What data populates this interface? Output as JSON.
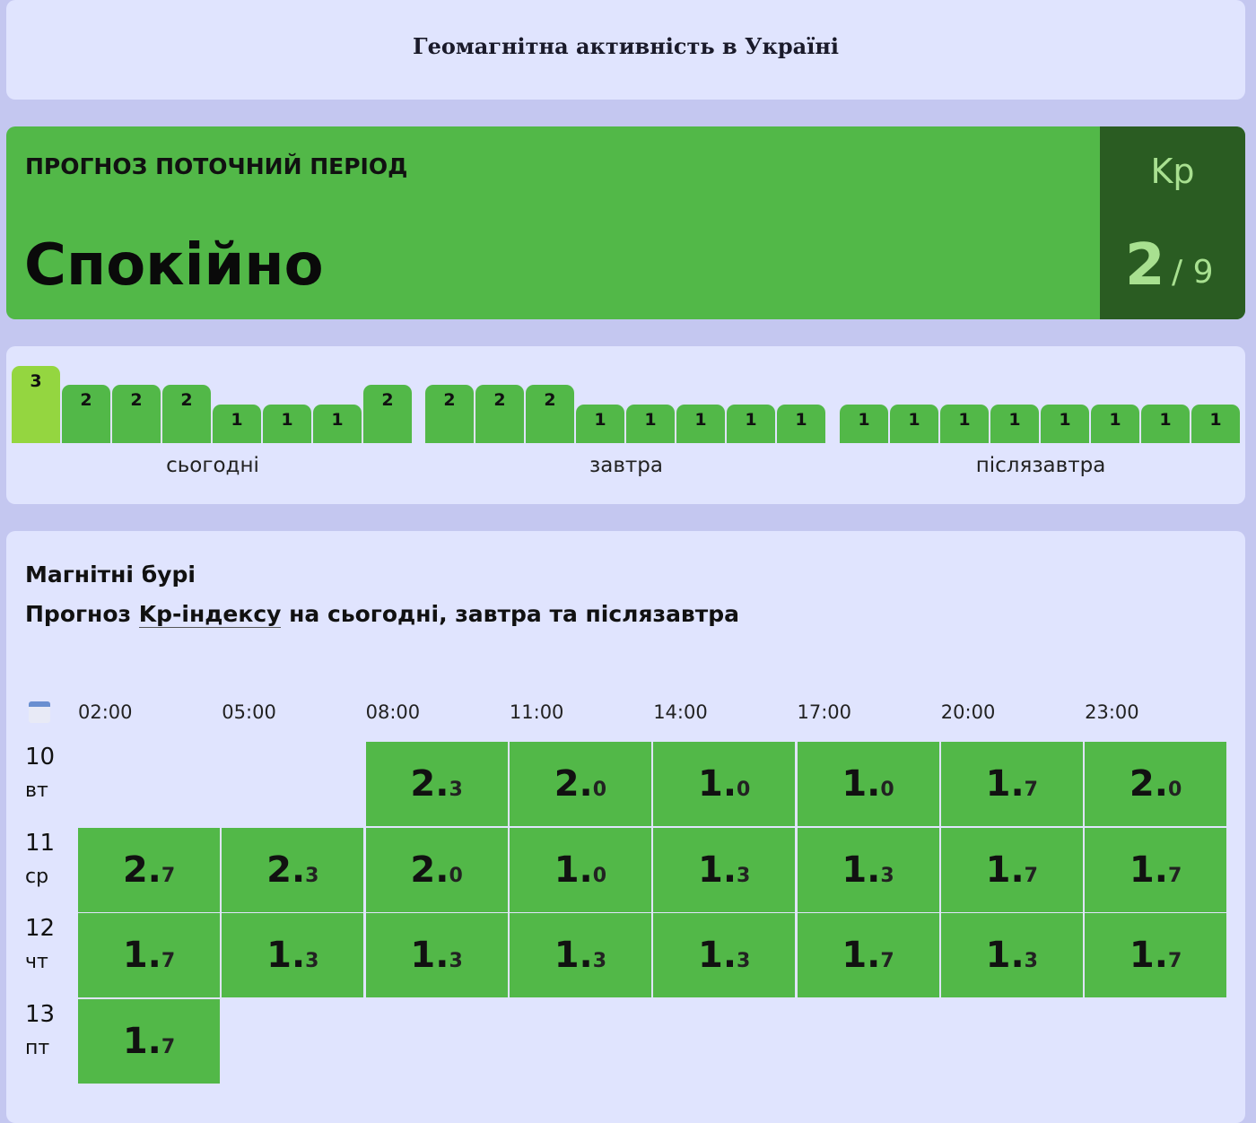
{
  "header": {
    "title": "Геомагнітна активність в Україні"
  },
  "current": {
    "label": "ПРОГНОЗ ПОТОЧНИЙ ПЕРІОД",
    "status": "Спокійно",
    "kp_label": "Kp",
    "kp_value": "2",
    "kp_max": "/ 9",
    "color": "#52b848",
    "kp_bg": "#2a5c22"
  },
  "bars": {
    "colors": {
      "normal": "#52b848",
      "highlight": "#94d640"
    },
    "groups": [
      {
        "label": "сьогодні",
        "values": [
          3,
          2,
          2,
          2,
          1,
          1,
          1,
          2
        ],
        "highlight_index": 0
      },
      {
        "label": "завтра",
        "values": [
          2,
          2,
          2,
          1,
          1,
          1,
          1,
          1
        ]
      },
      {
        "label": "післязавтра",
        "values": [
          1,
          1,
          1,
          1,
          1,
          1,
          1,
          1
        ]
      }
    ]
  },
  "storms": {
    "title": "Магнітні бурі",
    "subtitle_pre": "Прогноз ",
    "subtitle_link": "Kp-індексу",
    "subtitle_post": " на сьогодні, завтра та післязавтра",
    "calendar_icon": "calendar-icon",
    "hours": [
      "02:00",
      "05:00",
      "08:00",
      "11:00",
      "14:00",
      "17:00",
      "20:00",
      "23:00"
    ],
    "rows": [
      {
        "date": "10",
        "weekday": "вт",
        "values": [
          null,
          null,
          "2.3",
          "2.0",
          "1.0",
          "1.0",
          "1.7",
          "2.0"
        ]
      },
      {
        "date": "11",
        "weekday": "ср",
        "values": [
          "2.7",
          "2.3",
          "2.0",
          "1.0",
          "1.3",
          "1.3",
          "1.7",
          "1.7"
        ]
      },
      {
        "date": "12",
        "weekday": "чт",
        "values": [
          "1.7",
          "1.3",
          "1.3",
          "1.3",
          "1.3",
          "1.7",
          "1.3",
          "1.7"
        ]
      },
      {
        "date": "13",
        "weekday": "пт",
        "values": [
          "1.7",
          null,
          null,
          null,
          null,
          null,
          null,
          null
        ]
      }
    ]
  }
}
